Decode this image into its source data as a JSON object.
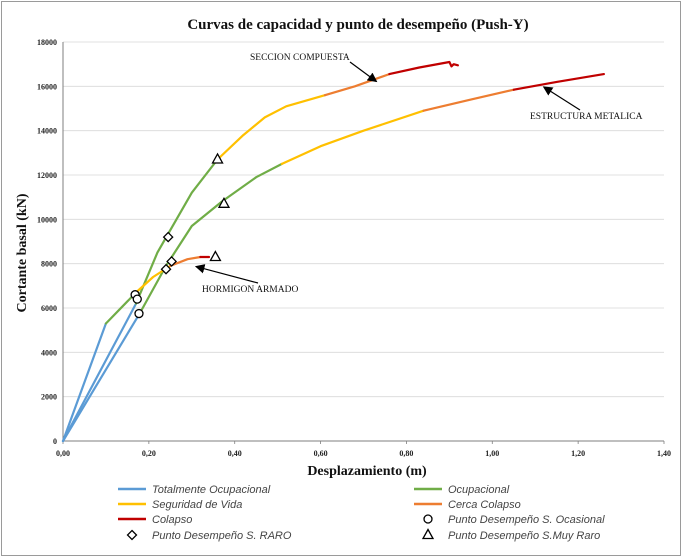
{
  "chart_data": {
    "type": "line",
    "title": "Curvas de capacidad y punto de desempeño (Push-Y)",
    "xlabel": "Desplazamiento (m)",
    "ylabel": "Cortante basal (kN)",
    "xlim": [
      0,
      1.4
    ],
    "ylim": [
      0,
      18000
    ],
    "x_ticks": [
      "0,00",
      "0,20",
      "0,40",
      "0,60",
      "0,80",
      "1,00",
      "1,20",
      "1,40"
    ],
    "y_ticks": [
      "0",
      "2000",
      "4000",
      "6000",
      "8000",
      "10000",
      "12000",
      "14000",
      "16000",
      "18000"
    ],
    "grid": "horizontal",
    "legend_placement": "bottom",
    "colors": {
      "Totalmente Ocupacional": "#5b9bd5",
      "Ocupacional": "#70ad47",
      "Seguridad de Vida": "#ffc000",
      "Cerca Colapso": "#ed7d31",
      "Colapso": "#c00000"
    },
    "curves": [
      {
        "label": "SECCION COMPUESTA",
        "stages": [
          {
            "stage": "Totalmente Ocupacional",
            "points": [
              [
                0,
                0
              ],
              [
                0.17,
                6200
              ]
            ]
          },
          {
            "stage": "Ocupacional",
            "points": [
              [
                0.17,
                6200
              ],
              [
                0.22,
                8500
              ],
              [
                0.3,
                11200
              ],
              [
                0.36,
                12700
              ]
            ]
          },
          {
            "stage": "Seguridad de Vida",
            "points": [
              [
                0.36,
                12700
              ],
              [
                0.42,
                13800
              ],
              [
                0.47,
                14600
              ],
              [
                0.52,
                15100
              ],
              [
                0.61,
                15600
              ]
            ]
          },
          {
            "stage": "Cerca Colapso",
            "points": [
              [
                0.61,
                15600
              ],
              [
                0.68,
                16000
              ],
              [
                0.76,
                16550
              ]
            ]
          },
          {
            "stage": "Colapso",
            "points": [
              [
                0.76,
                16550
              ],
              [
                0.83,
                16850
              ],
              [
                0.9,
                17100
              ],
              [
                0.905,
                16900
              ],
              [
                0.91,
                17000
              ],
              [
                0.92,
                16950
              ]
            ]
          }
        ]
      },
      {
        "label": "ESTRUCTURA METALICA",
        "stages": [
          {
            "stage": "Totalmente Ocupacional",
            "points": [
              [
                0,
                0
              ],
              [
                0.18,
                5800
              ]
            ]
          },
          {
            "stage": "Ocupacional",
            "points": [
              [
                0.18,
                5800
              ],
              [
                0.24,
                7900
              ],
              [
                0.3,
                9700
              ],
              [
                0.37,
                10800
              ],
              [
                0.45,
                11900
              ],
              [
                0.51,
                12500
              ]
            ]
          },
          {
            "stage": "Seguridad de Vida",
            "points": [
              [
                0.51,
                12500
              ],
              [
                0.6,
                13300
              ],
              [
                0.7,
                14000
              ],
              [
                0.84,
                14900
              ]
            ]
          },
          {
            "stage": "Cerca Colapso",
            "points": [
              [
                0.84,
                14900
              ],
              [
                0.95,
                15400
              ],
              [
                1.05,
                15850
              ]
            ]
          },
          {
            "stage": "Colapso",
            "points": [
              [
                1.05,
                15850
              ],
              [
                1.15,
                16200
              ],
              [
                1.26,
                16550
              ]
            ]
          }
        ]
      },
      {
        "label": "HORMIGON ARMADO",
        "stages": [
          {
            "stage": "Totalmente Ocupacional",
            "points": [
              [
                0,
                0
              ],
              [
                0.1,
                5300
              ]
            ]
          },
          {
            "stage": "Ocupacional",
            "points": [
              [
                0.1,
                5300
              ],
              [
                0.17,
                6700
              ]
            ]
          },
          {
            "stage": "Seguridad de Vida",
            "points": [
              [
                0.17,
                6700
              ],
              [
                0.21,
                7400
              ],
              [
                0.25,
                7900
              ]
            ]
          },
          {
            "stage": "Cerca Colapso",
            "points": [
              [
                0.25,
                7900
              ],
              [
                0.29,
                8200
              ],
              [
                0.32,
                8300
              ]
            ]
          },
          {
            "stage": "Colapso",
            "points": [
              [
                0.32,
                8300
              ],
              [
                0.34,
                8300
              ]
            ]
          }
        ]
      }
    ],
    "performance_points": [
      {
        "series": "Punto Desempeño S. Ocasional",
        "marker": "circle",
        "points": [
          [
            0.168,
            6600
          ],
          [
            0.173,
            6400
          ],
          [
            0.177,
            5750
          ]
        ]
      },
      {
        "series": "Punto Desempeño S. RARO",
        "marker": "diamond",
        "points": [
          [
            0.245,
            9200
          ],
          [
            0.253,
            8100
          ],
          [
            0.24,
            7750
          ]
        ]
      },
      {
        "series": "Punto Desempeño S.Muy Raro",
        "marker": "triangle",
        "points": [
          [
            0.36,
            12700
          ],
          [
            0.375,
            10700
          ],
          [
            0.355,
            8300
          ]
        ]
      }
    ],
    "annotations": [
      {
        "text": "SECCION COMPUESTA",
        "anchor": "top-left",
        "arrow_to": [
          0.73,
          16400
        ]
      },
      {
        "text": "ESTRUCTURA METALICA",
        "anchor": "right",
        "arrow_to": [
          1.12,
          16150
        ]
      },
      {
        "text": "HORMIGON ARMADO",
        "anchor": "bottom",
        "arrow_to": [
          0.31,
          8050
        ]
      }
    ],
    "legend": [
      {
        "label": "Totalmente Ocupacional",
        "kind": "line"
      },
      {
        "label": "Ocupacional",
        "kind": "line"
      },
      {
        "label": "Seguridad de Vida",
        "kind": "line"
      },
      {
        "label": "Cerca Colapso",
        "kind": "line"
      },
      {
        "label": "Colapso",
        "kind": "line"
      },
      {
        "label": "Punto Desempeño S. Ocasional",
        "kind": "circle"
      },
      {
        "label": "Punto Desempeño S. RARO",
        "kind": "diamond"
      },
      {
        "label": "Punto Desempeño S.Muy Raro",
        "kind": "triangle"
      }
    ]
  }
}
